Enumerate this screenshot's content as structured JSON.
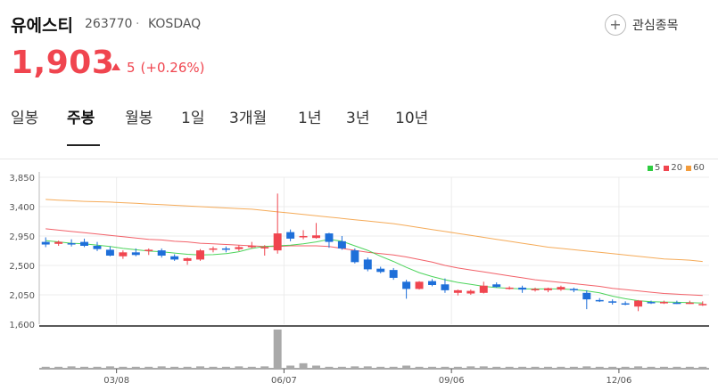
{
  "stock": {
    "name": "유에스티",
    "code": "263770",
    "separator": "·",
    "market": "KOSDAQ",
    "price": "1,903",
    "change": "5",
    "change_pct": "(+0.26%)",
    "watch_label": "관심종목",
    "colors": {
      "up": "#f0454f",
      "down": "#1e6fd9"
    }
  },
  "tabs": [
    {
      "label": "일봉",
      "active": false
    },
    {
      "label": "주봉",
      "active": true
    },
    {
      "label": "월봉",
      "active": false
    },
    {
      "label": "1일",
      "active": false
    },
    {
      "label": "3개월",
      "active": false
    },
    {
      "label": "1년",
      "active": false
    },
    {
      "label": "3년",
      "active": false
    },
    {
      "label": "10년",
      "active": false
    }
  ],
  "chart_data": {
    "type": "candlestick",
    "y_ticks": [
      "3,850",
      "3,400",
      "2,950",
      "2,500",
      "2,050",
      "1,600"
    ],
    "ylim": [
      1600,
      3850
    ],
    "x_ticks": [
      {
        "label": "03/08",
        "index": 5.5
      },
      {
        "label": "06/07",
        "index": 18.5
      },
      {
        "label": "09/06",
        "index": 31.5
      },
      {
        "label": "12/06",
        "index": 44.5
      }
    ],
    "grid": true,
    "legend_position": "top-right",
    "legend": [
      {
        "label": "5",
        "color": "#2ecc40"
      },
      {
        "label": "20",
        "color": "#f0454f"
      },
      {
        "label": "60",
        "color": "#f39c3c"
      }
    ],
    "candles": [
      [
        2860,
        2930,
        2780,
        2820
      ],
      [
        2830,
        2880,
        2800,
        2860
      ],
      [
        2840,
        2900,
        2790,
        2830
      ],
      [
        2860,
        2910,
        2780,
        2800
      ],
      [
        2800,
        2860,
        2720,
        2750
      ],
      [
        2740,
        2790,
        2640,
        2650
      ],
      [
        2640,
        2730,
        2600,
        2700
      ],
      [
        2700,
        2760,
        2640,
        2660
      ],
      [
        2720,
        2760,
        2660,
        2740
      ],
      [
        2730,
        2760,
        2620,
        2650
      ],
      [
        2640,
        2670,
        2570,
        2590
      ],
      [
        2570,
        2620,
        2510,
        2610
      ],
      [
        2590,
        2750,
        2570,
        2730
      ],
      [
        2740,
        2790,
        2700,
        2760
      ],
      [
        2760,
        2790,
        2700,
        2740
      ],
      [
        2750,
        2810,
        2720,
        2780
      ],
      [
        2790,
        2860,
        2760,
        2800
      ],
      [
        2760,
        2810,
        2650,
        2780
      ],
      [
        2730,
        3600,
        2680,
        2990
      ],
      [
        3010,
        3050,
        2870,
        2910
      ],
      [
        2940,
        3040,
        2900,
        2950
      ],
      [
        2920,
        3150,
        2910,
        2960
      ],
      [
        2990,
        3000,
        2770,
        2860
      ],
      [
        2870,
        2950,
        2740,
        2760
      ],
      [
        2730,
        2760,
        2530,
        2550
      ],
      [
        2590,
        2620,
        2410,
        2440
      ],
      [
        2450,
        2480,
        2380,
        2400
      ],
      [
        2430,
        2460,
        2280,
        2310
      ],
      [
        2250,
        2280,
        1990,
        2140
      ],
      [
        2140,
        2260,
        2130,
        2250
      ],
      [
        2260,
        2290,
        2180,
        2200
      ],
      [
        2210,
        2300,
        2080,
        2120
      ],
      [
        2080,
        2130,
        2040,
        2120
      ],
      [
        2070,
        2130,
        2050,
        2110
      ],
      [
        2080,
        2250,
        2070,
        2190
      ],
      [
        2210,
        2240,
        2160,
        2170
      ],
      [
        2160,
        2180,
        2130,
        2160
      ],
      [
        2160,
        2190,
        2080,
        2130
      ],
      [
        2130,
        2160,
        2100,
        2140
      ],
      [
        2120,
        2160,
        2090,
        2150
      ],
      [
        2130,
        2190,
        2110,
        2170
      ],
      [
        2140,
        2160,
        2090,
        2130
      ],
      [
        2080,
        2120,
        1830,
        1980
      ],
      [
        1970,
        2000,
        1940,
        1960
      ],
      [
        1950,
        1980,
        1900,
        1940
      ],
      [
        1920,
        1950,
        1890,
        1900
      ],
      [
        1870,
        1970,
        1800,
        1960
      ],
      [
        1940,
        1960,
        1910,
        1930
      ],
      [
        1930,
        1960,
        1910,
        1940
      ],
      [
        1930,
        1960,
        1910,
        1920
      ],
      [
        1930,
        1960,
        1910,
        1930
      ],
      [
        1900,
        1950,
        1880,
        1910
      ]
    ],
    "ma5": [
      2880,
      2860,
      2840,
      2830,
      2810,
      2790,
      2760,
      2740,
      2720,
      2710,
      2690,
      2670,
      2660,
      2665,
      2680,
      2710,
      2760,
      2790,
      2800,
      2810,
      2830,
      2860,
      2900,
      2870,
      2800,
      2730,
      2640,
      2560,
      2470,
      2390,
      2330,
      2280,
      2240,
      2210,
      2180,
      2160,
      2150,
      2140,
      2140,
      2140,
      2140,
      2130,
      2110,
      2080,
      2030,
      1990,
      1960,
      1945,
      1940,
      1935,
      1930,
      1925
    ],
    "ma20": [
      3060,
      3040,
      3020,
      3000,
      2980,
      2960,
      2940,
      2920,
      2900,
      2890,
      2870,
      2860,
      2840,
      2830,
      2820,
      2810,
      2800,
      2790,
      2790,
      2800,
      2800,
      2800,
      2790,
      2760,
      2730,
      2700,
      2680,
      2660,
      2630,
      2590,
      2550,
      2500,
      2460,
      2430,
      2400,
      2370,
      2340,
      2310,
      2280,
      2260,
      2240,
      2220,
      2200,
      2180,
      2150,
      2130,
      2110,
      2090,
      2070,
      2060,
      2050,
      2040
    ],
    "ma60": [
      3510,
      3500,
      3490,
      3480,
      3475,
      3470,
      3460,
      3450,
      3440,
      3430,
      3420,
      3410,
      3400,
      3390,
      3380,
      3370,
      3360,
      3340,
      3320,
      3300,
      3280,
      3260,
      3240,
      3220,
      3200,
      3180,
      3160,
      3140,
      3110,
      3080,
      3050,
      3020,
      2990,
      2960,
      2930,
      2900,
      2870,
      2840,
      2810,
      2780,
      2760,
      2740,
      2720,
      2700,
      2680,
      2660,
      2640,
      2620,
      2600,
      2590,
      2580,
      2560
    ],
    "volume": [
      5,
      5,
      6,
      5,
      5,
      6,
      5,
      5,
      5,
      6,
      5,
      5,
      6,
      5,
      5,
      6,
      5,
      6,
      100,
      8,
      14,
      8,
      5,
      5,
      6,
      6,
      5,
      5,
      8,
      5,
      5,
      5,
      5,
      6,
      6,
      5,
      5,
      5,
      5,
      5,
      5,
      5,
      6,
      5,
      5,
      5,
      6,
      5,
      5,
      5,
      5,
      5
    ]
  }
}
